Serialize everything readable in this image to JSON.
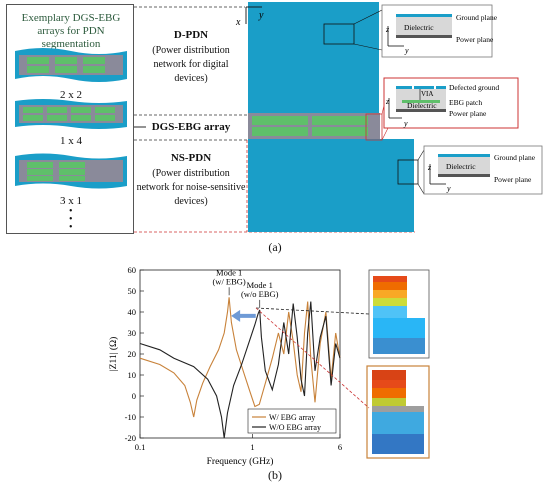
{
  "left_panel": {
    "title": "Exemplary DGS-EBG arrays for PDN segmentation",
    "arrays": [
      {
        "label": "2 x 2"
      },
      {
        "label": "1 x 4"
      },
      {
        "label": "3 x 1"
      }
    ]
  },
  "segments": {
    "dpdn": {
      "title": "D-PDN",
      "desc": "(Power distribution network for digital devices)"
    },
    "array": {
      "title": "DGS-EBG array"
    },
    "nspdn": {
      "title": "NS-PDN",
      "desc": "(Power distribution network for noise-sensitive devices)"
    }
  },
  "axes_top": {
    "x": "x",
    "y": "y"
  },
  "insets": {
    "top": {
      "ground": "Ground plane",
      "dielectric": "Dielectric",
      "power": "Power plane",
      "z": "z",
      "y": "y"
    },
    "mid": {
      "defected": "Defected ground",
      "via": "VIA",
      "dielectric": "Dielectric",
      "ebg": "EBG patch",
      "power": "Power plane",
      "z": "z",
      "y": "y"
    },
    "bot": {
      "ground": "Ground plane",
      "dielectric": "Dielectric",
      "power": "Power plane",
      "z": "z",
      "y": "y"
    }
  },
  "caption_a": "(a)",
  "caption_b": "(b)",
  "colors": {
    "board": "#1a9ec8",
    "ebg_patch": "#5fbf6a",
    "with_ebg": "#c8823a",
    "without_ebg": "#222222",
    "arrow": "#6e9ad6"
  },
  "chart_data": {
    "type": "line",
    "title": "",
    "xlabel": "Frequency (GHz)",
    "ylabel": "|Z11| (Ω)",
    "xscale": "log",
    "xlim": [
      0.1,
      6
    ],
    "ylim": [
      -20,
      60
    ],
    "xticks": [
      0.1,
      1,
      6
    ],
    "xtick_labels": [
      "0.1",
      "1",
      "6"
    ],
    "yticks": [
      -20,
      -10,
      0,
      10,
      20,
      30,
      40,
      50,
      60
    ],
    "ytick_labels": [
      "-20",
      "-10",
      "0",
      "10",
      "20",
      "30",
      "40",
      "50",
      "60"
    ],
    "annotations": [
      {
        "text_line1": "Mode 1",
        "text_line2": "(w/ EBG)",
        "x": 0.62,
        "y": 47
      },
      {
        "text_line1": "Mode 1",
        "text_line2": "(w/o EBG)",
        "x": 1.16,
        "y": 41
      }
    ],
    "legend": {
      "placement": "bottom-right",
      "entries": [
        "W/ EBG array",
        "W/O EBG array"
      ]
    },
    "series": [
      {
        "name": "W/ EBG array",
        "color": "#c8823a",
        "x": [
          0.1,
          0.15,
          0.2,
          0.25,
          0.28,
          0.3,
          0.32,
          0.36,
          0.42,
          0.5,
          0.56,
          0.6,
          0.62,
          0.65,
          0.72,
          0.85,
          0.95,
          1.05,
          1.15,
          1.3,
          1.5,
          1.7,
          1.9,
          2.1,
          2.3,
          2.5,
          2.7,
          2.9,
          3.1,
          3.3,
          3.6,
          4.0,
          4.5,
          5.0,
          5.5,
          6.0
        ],
        "y": [
          18,
          15,
          11,
          5,
          -3,
          -10,
          -2,
          6,
          14,
          22,
          30,
          40,
          47,
          35,
          22,
          10,
          2,
          -5,
          -4,
          6,
          18,
          30,
          20,
          40,
          26,
          10,
          2,
          30,
          45,
          18,
          -3,
          25,
          40,
          8,
          30,
          18
        ]
      },
      {
        "name": "W/O EBG array",
        "color": "#222222",
        "x": [
          0.1,
          0.15,
          0.2,
          0.3,
          0.4,
          0.48,
          0.53,
          0.56,
          0.6,
          0.68,
          0.8,
          0.95,
          1.05,
          1.12,
          1.16,
          1.2,
          1.3,
          1.5,
          1.7,
          1.9,
          2.1,
          2.3,
          2.5,
          2.7,
          2.9,
          3.1,
          3.3,
          3.6,
          4.0,
          4.5,
          5.0,
          5.5,
          6.0
        ],
        "y": [
          25,
          22,
          18,
          14,
          8,
          0,
          -10,
          -20,
          -8,
          5,
          15,
          27,
          34,
          39,
          41,
          28,
          12,
          3,
          15,
          35,
          20,
          44,
          28,
          8,
          0,
          30,
          45,
          12,
          28,
          38,
          5,
          25,
          18
        ]
      }
    ]
  }
}
